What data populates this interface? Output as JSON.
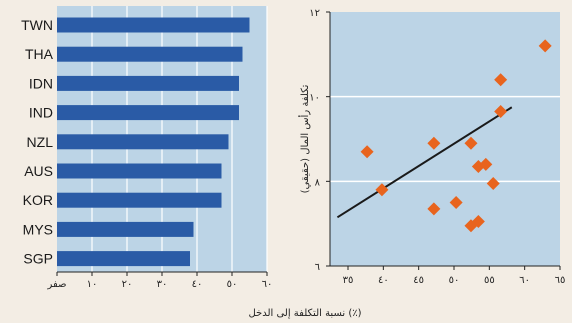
{
  "chart_data": [
    {
      "type": "bar",
      "orientation": "horizontal",
      "categories": [
        "TWN",
        "THA",
        "IDN",
        "IND",
        "NZL",
        "AUS",
        "KOR",
        "MYS",
        "SGP"
      ],
      "values": [
        55,
        53,
        52,
        52,
        49,
        47,
        47,
        39,
        38
      ],
      "xlim": [
        0,
        60
      ],
      "xticks": [
        "صفر",
        "١٠",
        "٢٠",
        "٣٠",
        "٤٠",
        "٥٠",
        "٦٠"
      ],
      "grid": true,
      "bar_color": "#2a5ba6",
      "background": "#bcd4e6"
    },
    {
      "type": "scatter",
      "x": [
        39,
        41,
        48,
        48,
        51,
        53,
        53,
        54,
        54,
        55,
        56,
        57,
        57,
        63
      ],
      "y": [
        8.7,
        7.8,
        7.35,
        8.9,
        7.5,
        6.95,
        8.9,
        7.05,
        8.35,
        8.4,
        7.95,
        9.65,
        10.4,
        11.2
      ],
      "trend_line": {
        "x": [
          35,
          58.5
        ],
        "y": [
          7.15,
          9.75
        ]
      },
      "xlim": [
        34,
        65
      ],
      "ylim": [
        6,
        12
      ],
      "xticks": [
        "٣٥",
        "٤٠",
        "٤٥",
        "٥٠",
        "٥٥",
        "٦٠",
        "٦٥"
      ],
      "yticks": [
        "٦",
        "٨",
        "١٠",
        "١٢"
      ],
      "ylabel": "تكلفة رأس المال (حقيقي)",
      "marker_color": "#e8641e",
      "background": "#bcd4e6"
    }
  ],
  "shared_xlabel": "نسبة التكلفة إلى الدخل (٪)"
}
